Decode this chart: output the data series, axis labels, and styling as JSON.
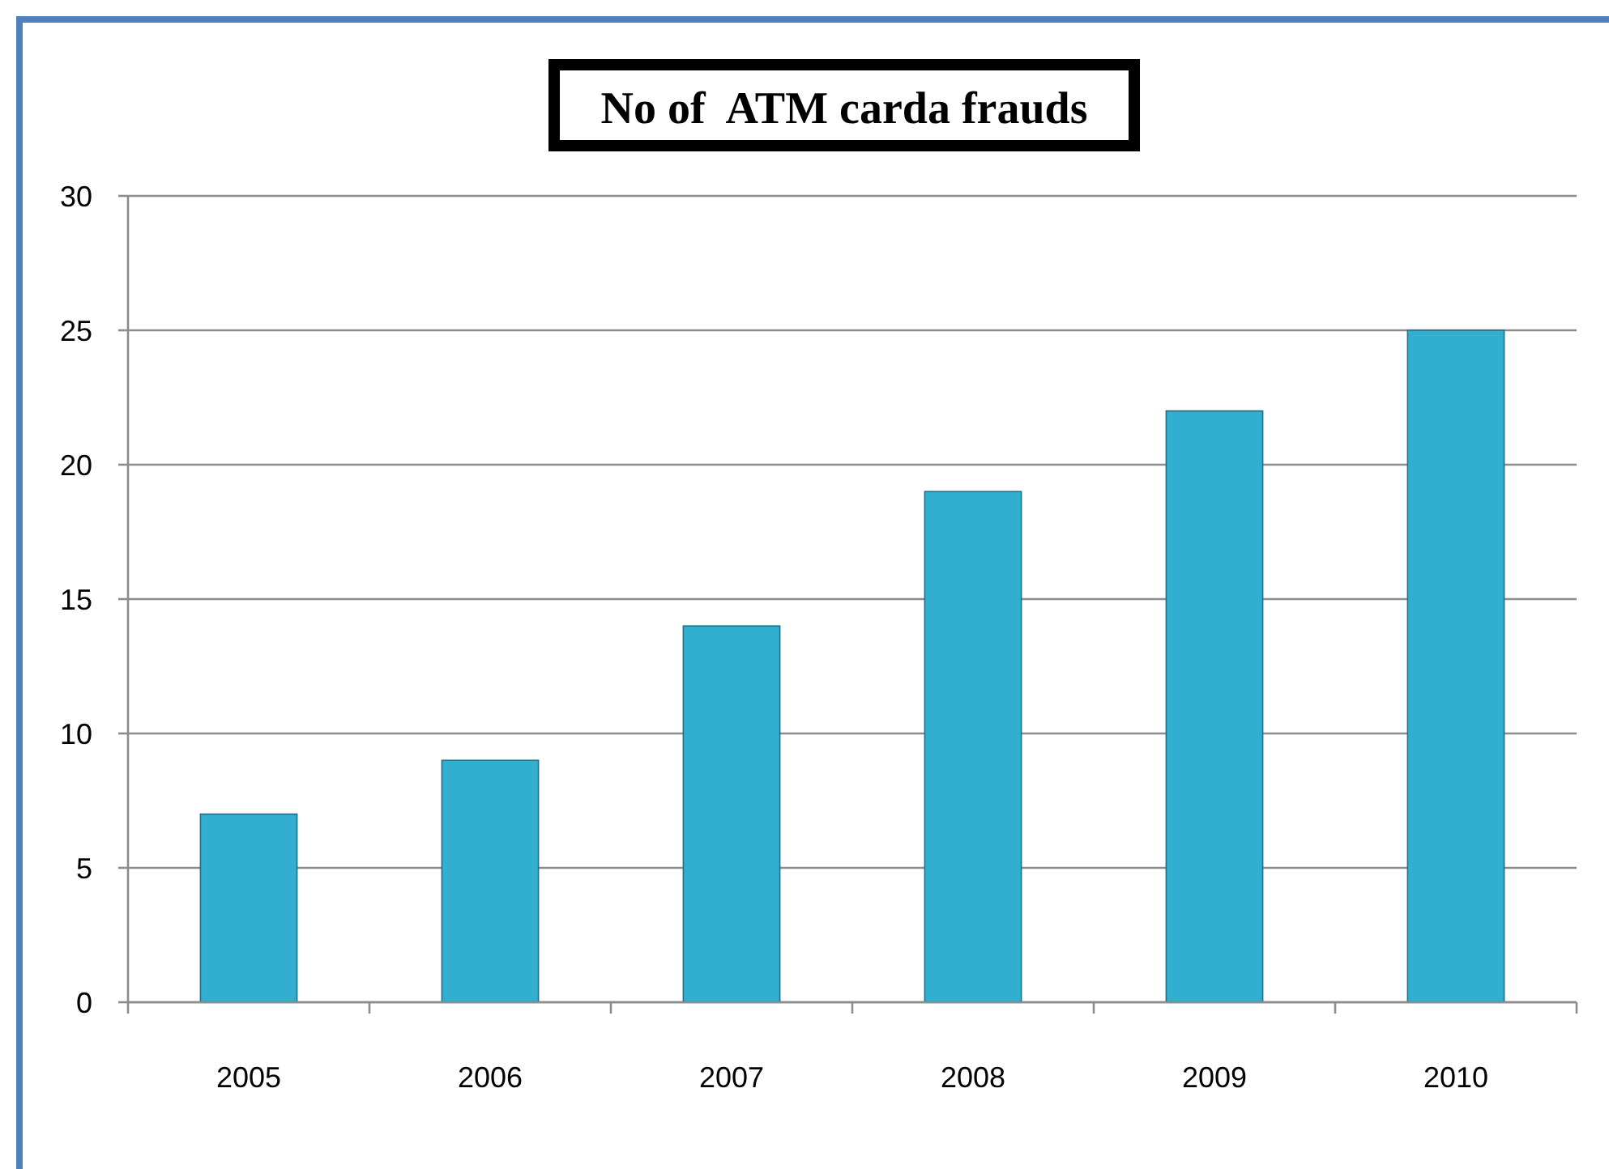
{
  "chart_data": {
    "type": "bar",
    "title": "No of  ATM carda frauds",
    "categories": [
      "2005",
      "2006",
      "2007",
      "2008",
      "2009",
      "2010"
    ],
    "values": [
      7,
      9,
      14,
      19,
      22,
      25
    ],
    "color": "#31aed0",
    "ylim": [
      0,
      30
    ],
    "yticks": [
      0,
      5,
      10,
      15,
      20,
      25,
      30
    ],
    "grid": "y"
  }
}
